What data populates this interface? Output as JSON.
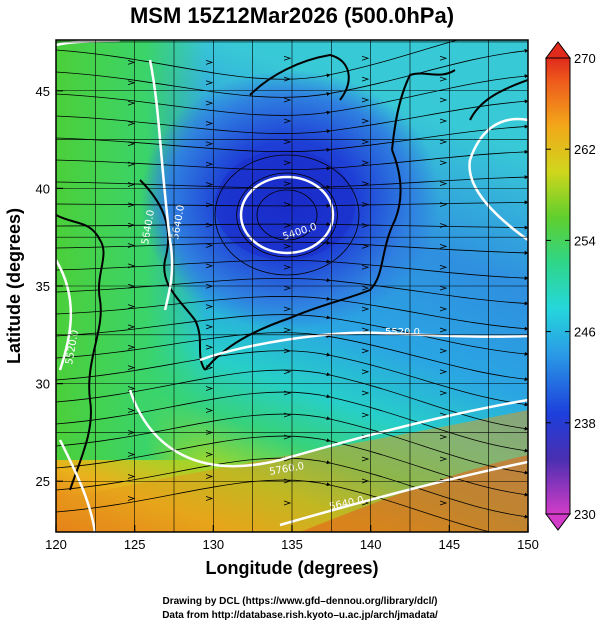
{
  "title": "MSM 15Z12Mar2026 (500.0hPa)",
  "x_axis": {
    "label": "Longitude (degrees)",
    "range": [
      120,
      150
    ],
    "ticks": [
      "120",
      "125",
      "130",
      "135",
      "140",
      "145",
      "150"
    ]
  },
  "y_axis": {
    "label": "Latitude  (degrees)",
    "range": [
      22.4,
      47.6
    ],
    "ticks": [
      "25",
      "30",
      "35",
      "40",
      "45"
    ]
  },
  "colorbar": {
    "range": [
      230,
      270
    ],
    "tick_labels": [
      "270",
      "262",
      "254",
      "246",
      "238",
      "230"
    ],
    "colormap": "rainbow (magenta-blue-cyan-green-yellow-orange-red)"
  },
  "contour_labels": [
    "5400.0",
    "5520.0",
    "5640.0",
    "5760.0",
    "5640.0",
    "5520.0",
    "5640.0"
  ],
  "credits": {
    "line1": "Drawing by DCL (https://www.gfd–dennou.org/library/dcl/)",
    "line2": "Data from http://database.rish.kyoto–u.ac.jp/arch/jmadata/"
  },
  "colors": {
    "contour": "#ffffff",
    "coast": "#000000",
    "streamline": "#000000",
    "low_center": "#1a2fcf",
    "warm": "#e0601c",
    "mid": "#2ccf7a"
  }
}
